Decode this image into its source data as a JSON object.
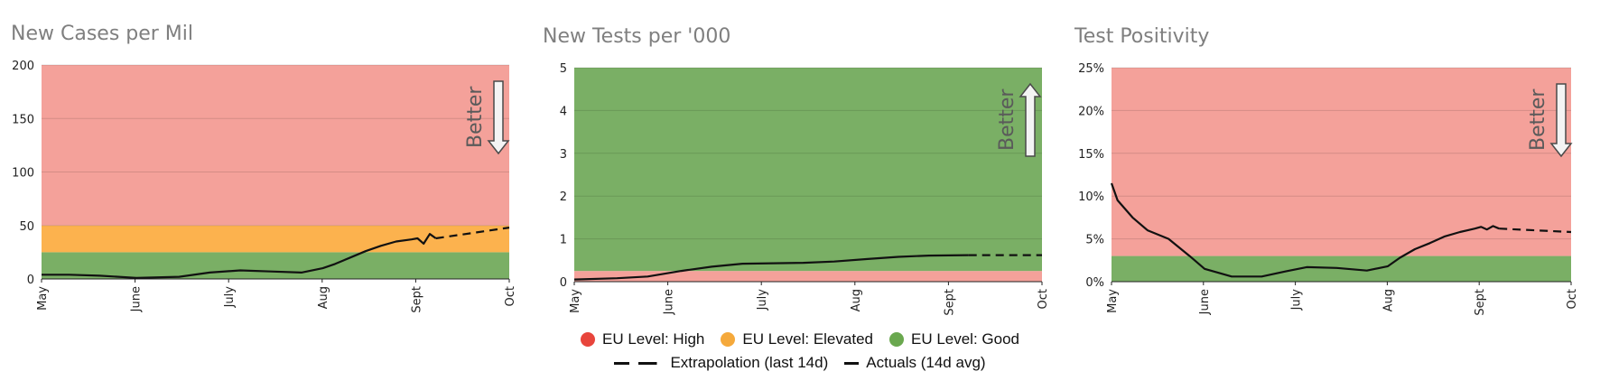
{
  "colors": {
    "high": "#f4a19a",
    "elevated": "#fcb24e",
    "good": "#7aaf65",
    "high_dot": "#e8453c",
    "elevated_dot": "#f5a93b",
    "good_dot": "#6aa84f",
    "line": "#111111"
  },
  "better_label": "Better",
  "legend": {
    "high": "EU Level: High",
    "elevated": "EU Level: Elevated",
    "good": "EU Level: Good",
    "extrapolation": "Extrapolation (last 14d)",
    "actuals": "Actuals (14d avg)"
  },
  "chart_data": [
    {
      "type": "line",
      "title": "New Cases per Mil",
      "xlabel": "",
      "ylabel": "",
      "x_ticks": [
        "May",
        "June",
        "July",
        "Aug",
        "Sept",
        "Oct"
      ],
      "x_range": [
        "2020-05-01",
        "2020-10-01"
      ],
      "ylim": [
        0,
        200
      ],
      "y_ticks": [
        0,
        50,
        100,
        150,
        200
      ],
      "y_tick_labels": [
        "0",
        "50",
        "100",
        "150",
        "200"
      ],
      "better_direction": "down",
      "bands": [
        {
          "level": "good",
          "from": 0,
          "to": 25
        },
        {
          "level": "elevated",
          "from": 25,
          "to": 50
        },
        {
          "level": "high",
          "from": 50,
          "to": 200
        }
      ],
      "series": [
        {
          "style": "solid",
          "x": [
            "2020-05-01",
            "2020-05-10",
            "2020-05-20",
            "2020-06-01",
            "2020-06-15",
            "2020-06-25",
            "2020-07-05",
            "2020-07-15",
            "2020-07-25",
            "2020-08-01",
            "2020-08-05",
            "2020-08-10",
            "2020-08-15",
            "2020-08-20",
            "2020-08-25",
            "2020-08-30",
            "2020-09-01",
            "2020-09-03",
            "2020-09-05",
            "2020-09-07"
          ],
          "y": [
            4,
            4,
            3,
            1,
            2,
            6,
            8,
            7,
            6,
            10,
            14,
            20,
            26,
            31,
            35,
            37,
            38,
            33,
            42,
            38
          ]
        },
        {
          "style": "dashed",
          "x": [
            "2020-09-07",
            "2020-10-01"
          ],
          "y": [
            38,
            48
          ]
        }
      ]
    },
    {
      "type": "line",
      "title": "New Tests per '000",
      "xlabel": "",
      "ylabel": "",
      "x_ticks": [
        "May",
        "June",
        "July",
        "Aug",
        "Sept",
        "Oct"
      ],
      "x_range": [
        "2020-05-01",
        "2020-10-01"
      ],
      "ylim": [
        0,
        5
      ],
      "y_ticks": [
        0,
        1,
        2,
        3,
        4,
        5
      ],
      "y_tick_labels": [
        "0",
        "1",
        "2",
        "3",
        "4",
        "5"
      ],
      "better_direction": "up",
      "bands": [
        {
          "level": "high",
          "from": 0,
          "to": 0.25
        },
        {
          "level": "good",
          "from": 0.25,
          "to": 5
        }
      ],
      "series": [
        {
          "style": "solid",
          "x": [
            "2020-05-01",
            "2020-05-15",
            "2020-05-25",
            "2020-06-05",
            "2020-06-15",
            "2020-06-25",
            "2020-07-05",
            "2020-07-15",
            "2020-07-25",
            "2020-08-05",
            "2020-08-15",
            "2020-08-25",
            "2020-09-07"
          ],
          "y": [
            0.05,
            0.08,
            0.12,
            0.25,
            0.35,
            0.42,
            0.43,
            0.44,
            0.47,
            0.53,
            0.58,
            0.61,
            0.62
          ]
        },
        {
          "style": "dashed",
          "x": [
            "2020-09-07",
            "2020-10-01"
          ],
          "y": [
            0.62,
            0.62
          ]
        }
      ]
    },
    {
      "type": "line",
      "title": "Test Positivity",
      "xlabel": "",
      "ylabel": "",
      "x_ticks": [
        "May",
        "June",
        "July",
        "Aug",
        "Sept",
        "Oct"
      ],
      "x_range": [
        "2020-05-01",
        "2020-10-01"
      ],
      "ylim": [
        0,
        25
      ],
      "y_ticks": [
        0,
        5,
        10,
        15,
        20,
        25
      ],
      "y_tick_labels": [
        "0%",
        "5%",
        "10%",
        "15%",
        "20%",
        "25%"
      ],
      "better_direction": "down",
      "bands": [
        {
          "level": "good",
          "from": 0,
          "to": 3
        },
        {
          "level": "high",
          "from": 3,
          "to": 25
        }
      ],
      "series": [
        {
          "style": "solid",
          "x": [
            "2020-05-01",
            "2020-05-03",
            "2020-05-08",
            "2020-05-13",
            "2020-05-20",
            "2020-05-27",
            "2020-06-01",
            "2020-06-10",
            "2020-06-20",
            "2020-06-28",
            "2020-07-05",
            "2020-07-15",
            "2020-07-25",
            "2020-08-01",
            "2020-08-05",
            "2020-08-10",
            "2020-08-15",
            "2020-08-20",
            "2020-08-25",
            "2020-08-30",
            "2020-09-01",
            "2020-09-03",
            "2020-09-05",
            "2020-09-07"
          ],
          "y": [
            11.5,
            9.5,
            7.5,
            6.0,
            5.0,
            3.0,
            1.5,
            0.6,
            0.6,
            1.2,
            1.7,
            1.6,
            1.3,
            1.8,
            2.8,
            3.8,
            4.5,
            5.3,
            5.8,
            6.2,
            6.4,
            6.1,
            6.5,
            6.2
          ]
        },
        {
          "style": "dashed",
          "x": [
            "2020-09-07",
            "2020-10-01"
          ],
          "y": [
            6.2,
            5.8
          ]
        }
      ]
    }
  ]
}
